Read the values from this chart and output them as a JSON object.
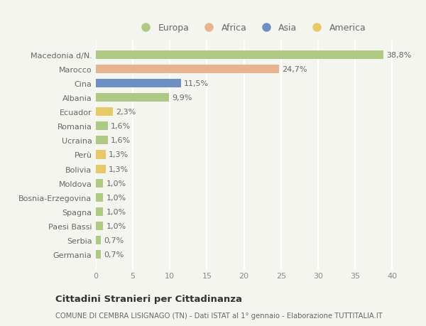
{
  "categories": [
    "Macedonia d/N.",
    "Marocco",
    "Cina",
    "Albania",
    "Ecuador",
    "Romania",
    "Ucraina",
    "Perù",
    "Bolivia",
    "Moldova",
    "Bosnia-Erzegovina",
    "Spagna",
    "Paesi Bassi",
    "Serbia",
    "Germania"
  ],
  "values": [
    38.8,
    24.7,
    11.5,
    9.9,
    2.3,
    1.6,
    1.6,
    1.3,
    1.3,
    1.0,
    1.0,
    1.0,
    1.0,
    0.7,
    0.7
  ],
  "labels": [
    "38,8%",
    "24,7%",
    "11,5%",
    "9,9%",
    "2,3%",
    "1,6%",
    "1,6%",
    "1,3%",
    "1,3%",
    "1,0%",
    "1,0%",
    "1,0%",
    "1,0%",
    "0,7%",
    "0,7%"
  ],
  "colors": [
    "#adc983",
    "#e8b48e",
    "#6e8fc4",
    "#adc983",
    "#e8c96a",
    "#adc983",
    "#adc983",
    "#e8c96a",
    "#e8c96a",
    "#adc983",
    "#adc983",
    "#adc983",
    "#adc983",
    "#adc983",
    "#adc983"
  ],
  "continent_colors": {
    "Europa": "#adc983",
    "Africa": "#e8b48e",
    "Asia": "#6e8fc4",
    "America": "#e8c96a"
  },
  "legend_labels": [
    "Europa",
    "Africa",
    "Asia",
    "America"
  ],
  "xlim": [
    0,
    42
  ],
  "xticks": [
    0,
    5,
    10,
    15,
    20,
    25,
    30,
    35,
    40
  ],
  "title": "Cittadini Stranieri per Cittadinanza",
  "subtitle": "COMUNE DI CEMBRA LISIGNAGO (TN) - Dati ISTAT al 1° gennaio - Elaborazione TUTTITALIA.IT",
  "bg_color": "#f5f5f0",
  "bar_height": 0.6,
  "label_fontsize": 8,
  "tick_fontsize": 8,
  "grid_color": "#ffffff"
}
